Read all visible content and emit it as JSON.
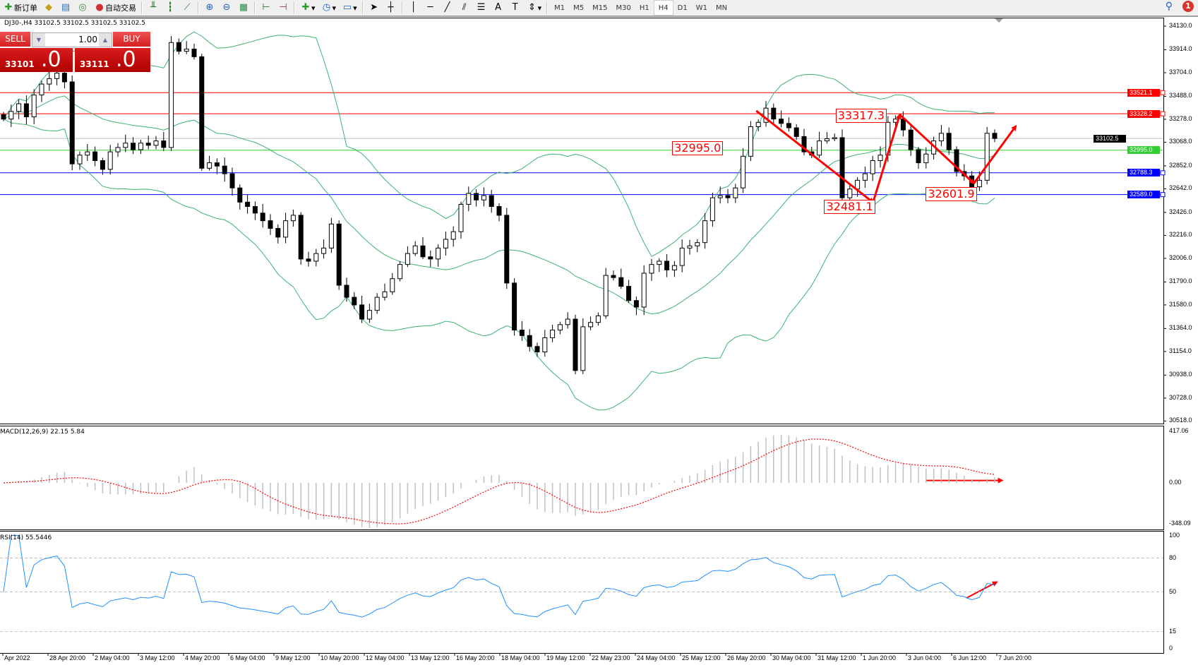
{
  "toolbar": {
    "new_order": "新订单",
    "auto_trading": "自动交易",
    "timeframes": [
      "M1",
      "M5",
      "M15",
      "M30",
      "H1",
      "H4",
      "D1",
      "W1",
      "MN"
    ],
    "active_timeframe": "H4",
    "notification_count": "1"
  },
  "chart": {
    "symbol_info": "DJ30-,H4  33102.5 33102.5 33102.5 33102.5",
    "last_price": "33102.5",
    "price_ticks": [
      "34130.0",
      "33914.0",
      "33704.0",
      "33488.0",
      "33278.0",
      "33068.0",
      "32852.0",
      "32642.0",
      "32426.0",
      "32216.0",
      "32006.0",
      "31790.0",
      "31580.0",
      "31364.0",
      "31154.0",
      "30938.0",
      "30728.0",
      "30518.0"
    ],
    "price_range": [
      30518,
      34130
    ],
    "levels": [
      {
        "label": "33521.1",
        "price": 33521.1,
        "color": "#ff0000"
      },
      {
        "label": "33328.2",
        "price": 33328.2,
        "color": "#ff0000"
      },
      {
        "label": "32995.0",
        "price": 32995.0,
        "color": "#32cd32"
      },
      {
        "label": "32788.3",
        "price": 32788.3,
        "color": "#0000ff"
      },
      {
        "label": "32589.0",
        "price": 32589.0,
        "color": "#0000ff"
      }
    ],
    "annotations": [
      "32995.0",
      "33317.3",
      "32481.1",
      "32601.9"
    ],
    "colors": {
      "bands": "#3cb371",
      "bull": "#ffffff",
      "bear": "#000000",
      "arrow": "#ff0000",
      "last_line": "#c0c0c0"
    },
    "closes": [
      33280,
      33350,
      33420,
      33300,
      33500,
      33600,
      33650,
      33700,
      33620,
      32870,
      32950,
      32980,
      32900,
      32820,
      32980,
      33020,
      33060,
      33000,
      33060,
      33040,
      33080,
      33020,
      33980,
      33900,
      33920,
      33850,
      32830,
      32880,
      32850,
      32780,
      32650,
      32520,
      32480,
      32420,
      32350,
      32280,
      32200,
      32350,
      32400,
      32000,
      31980,
      32050,
      32100,
      32320,
      31760,
      31650,
      31580,
      31450,
      31530,
      31650,
      31700,
      31820,
      31950,
      32050,
      32120,
      32020,
      32000,
      32100,
      32180,
      32250,
      32500,
      32600,
      32540,
      32580,
      32480,
      32400,
      31780,
      31350,
      31300,
      31200,
      31150,
      31280,
      31350,
      31400,
      31450,
      30980,
      31380,
      31420,
      31480,
      31850,
      31830,
      31750,
      31620,
      31560,
      31870,
      31950,
      31980,
      31900,
      31940,
      32100,
      32120,
      32150,
      32350,
      32560,
      32580,
      32560,
      32650,
      32940,
      33210,
      33250,
      33380,
      33280,
      33240,
      33200,
      33120,
      32980,
      32950,
      33080,
      33100,
      33110,
      32560,
      32640,
      32720,
      32780,
      32900,
      32950,
      33250,
      33280,
      33180,
      33000,
      32880,
      32960,
      33080,
      33150,
      33000,
      32800,
      32760,
      32660,
      32720,
      33150,
      33102.5
    ]
  },
  "one_click": {
    "sell": "SELL",
    "buy": "BUY",
    "lot": "1.00",
    "bid_main": "33101",
    "bid_frac": ".0",
    "ask_main": "33111",
    "ask_frac": ".0"
  },
  "macd": {
    "label": "MACD(12,26,9) 22.15 5.84",
    "ticks": [
      "417.06",
      "0.00",
      "-348.09"
    ],
    "range": [
      -348.09,
      417.06
    ],
    "colors": {
      "histogram": "#c0c0c0",
      "signal": "#ff0000"
    }
  },
  "rsi": {
    "label": "RSI(14) 55.5446",
    "ticks": [
      "100",
      "80",
      "50",
      "15",
      "0"
    ],
    "levels": [
      80,
      50,
      15
    ],
    "color": "#1e90ff"
  },
  "time_axis": [
    "Apr 2022",
    "28 Apr 20:00",
    "2 May 04:00",
    "3 May 12:00",
    "4 May 20:00",
    "6 May 04:00",
    "9 May 12:00",
    "10 May 20:00",
    "12 May 04:00",
    "13 May 12:00",
    "16 May 20:00",
    "18 May 04:00",
    "19 May 12:00",
    "22 May 23:00",
    "24 May 04:00",
    "25 May 12:00",
    "26 May 20:00",
    "30 May 04:00",
    "31 May 12:00",
    "1 Jun 20:00",
    "3 Jun 04:00",
    "6 Jun 12:00",
    "7 Jun 20:00"
  ]
}
